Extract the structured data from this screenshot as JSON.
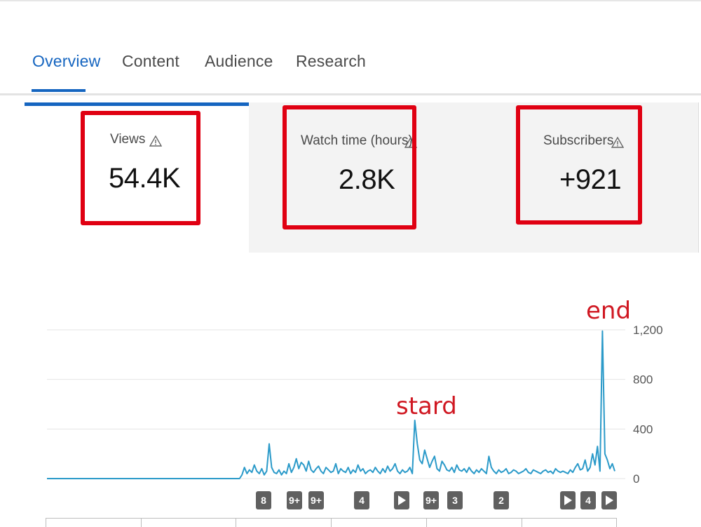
{
  "tabs": [
    {
      "label": "Overview",
      "active": true
    },
    {
      "label": "Content",
      "active": false
    },
    {
      "label": "Audience",
      "active": false
    },
    {
      "label": "Research",
      "active": false
    }
  ],
  "metrics": [
    {
      "label": "Views",
      "value": "54.4K",
      "icon": "warning-icon"
    },
    {
      "label": "Watch time (hours)",
      "value": "2.8K",
      "icon": "warning-icon"
    },
    {
      "label": "Subscribers",
      "value": "+921",
      "icon": "warning-icon"
    }
  ],
  "annotations": {
    "start": "stard",
    "end": "end"
  },
  "colors": {
    "accent": "#1565c0",
    "line": "#2b9ac9",
    "highlight": "#e00012",
    "marker": "#606060"
  },
  "markers": [
    {
      "label": "8",
      "type": "count"
    },
    {
      "label": "9+",
      "type": "count"
    },
    {
      "label": "9+",
      "type": "count"
    },
    {
      "label": "4",
      "type": "count"
    },
    {
      "label": "",
      "type": "play"
    },
    {
      "label": "9+",
      "type": "count"
    },
    {
      "label": "3",
      "type": "count"
    },
    {
      "label": "2",
      "type": "count"
    },
    {
      "label": "",
      "type": "play"
    },
    {
      "label": "4",
      "type": "count"
    },
    {
      "label": "",
      "type": "play"
    }
  ],
  "chart_data": {
    "type": "line",
    "title": "",
    "xlabel": "",
    "ylabel": "",
    "ylim": [
      0,
      1200
    ],
    "yticks": [
      "1,200",
      "800",
      "400",
      "0"
    ],
    "grid": true,
    "series": [
      {
        "values": [
          0,
          0,
          0,
          0,
          0,
          0,
          0,
          0,
          0,
          0,
          0,
          0,
          0,
          0,
          0,
          0,
          0,
          0,
          0,
          0,
          0,
          0,
          0,
          0,
          0,
          0,
          0,
          0,
          0,
          0,
          0,
          0,
          0,
          0,
          0,
          0,
          0,
          0,
          0,
          0,
          0,
          0,
          0,
          0,
          0,
          0,
          0,
          0,
          0,
          0,
          0,
          0,
          0,
          0,
          0,
          0,
          0,
          0,
          0,
          0,
          0,
          0,
          0,
          0,
          0,
          0,
          0,
          0,
          0,
          0,
          0,
          0,
          0,
          0,
          0,
          0,
          0,
          0,
          0,
          30,
          90,
          40,
          70,
          50,
          110,
          60,
          40,
          80,
          30,
          60,
          280,
          90,
          50,
          40,
          70,
          30,
          60,
          40,
          120,
          50,
          90,
          160,
          80,
          130,
          110,
          60,
          140,
          70,
          50,
          80,
          100,
          60,
          40,
          90,
          70,
          50,
          60,
          120,
          40,
          80,
          60,
          50,
          90,
          40,
          70,
          50,
          110,
          60,
          80,
          40,
          60,
          70,
          50,
          90,
          60,
          40,
          80,
          50,
          100,
          60,
          80,
          120,
          60,
          40,
          70,
          50,
          60,
          90,
          40,
          470,
          280,
          150,
          120,
          230,
          160,
          90,
          140,
          180,
          80,
          60,
          140,
          110,
          70,
          60,
          90,
          50,
          110,
          70,
          60,
          80,
          50,
          90,
          60,
          40,
          70,
          50,
          80,
          60,
          40,
          180,
          90,
          60,
          40,
          70,
          50,
          60,
          80,
          40,
          50,
          70,
          60,
          40,
          50,
          60,
          80,
          50,
          40,
          70,
          60,
          50,
          40,
          60,
          70,
          50,
          60,
          40,
          80,
          60,
          50,
          60,
          50,
          40,
          70,
          50,
          90,
          120,
          70,
          80,
          150,
          60,
          90,
          200,
          110,
          260,
          60,
          1190,
          200,
          150,
          80,
          120,
          60
        ]
      }
    ],
    "markers_x": [],
    "start_index": 0
  }
}
